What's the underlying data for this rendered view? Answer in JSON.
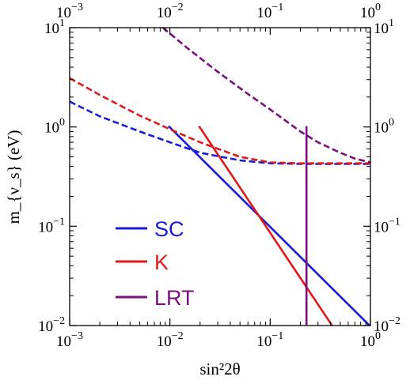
{
  "chart_data": {
    "type": "line",
    "xlabel": "sin²2θ",
    "ylabel": "m_{ν_s} (eV)",
    "x_scale": "log",
    "y_scale": "log",
    "xlim": [
      0.001,
      1
    ],
    "ylim": [
      0.01,
      10
    ],
    "grid": false,
    "legend_position": "bottom-left",
    "x_ticks": [
      {
        "value": 0.001,
        "base": "10",
        "exp": "−3"
      },
      {
        "value": 0.01,
        "base": "10",
        "exp": "−2"
      },
      {
        "value": 0.1,
        "base": "10",
        "exp": "−1"
      },
      {
        "value": 1,
        "base": "10",
        "exp": "0"
      }
    ],
    "y_ticks": [
      {
        "value": 0.01,
        "base": "10",
        "exp": "−2"
      },
      {
        "value": 0.1,
        "base": "10",
        "exp": "−1"
      },
      {
        "value": 1,
        "base": "10",
        "exp": "0"
      },
      {
        "value": 10,
        "base": "10",
        "exp": "1"
      }
    ],
    "series": [
      {
        "name": "SC",
        "color": "#1a1adb",
        "style": "solid",
        "x": [
          0.0097,
          1.0
        ],
        "y": [
          1.02,
          0.0098
        ]
      },
      {
        "name": "K",
        "color": "#e01a1a",
        "style": "solid",
        "x": [
          0.0195,
          0.42
        ],
        "y": [
          1.02,
          0.0098
        ]
      },
      {
        "name": "LRT",
        "color": "#7a107a",
        "style": "solid",
        "x": [
          0.23,
          0.23
        ],
        "y": [
          1.02,
          0.0098
        ]
      },
      {
        "name": "SC",
        "color": "#1a1adb",
        "style": "dashed",
        "x": [
          0.001,
          0.002,
          0.005,
          0.01,
          0.02,
          0.05,
          0.1,
          0.2,
          0.5,
          1.0
        ],
        "y": [
          1.8,
          1.28,
          0.9,
          0.7,
          0.55,
          0.46,
          0.43,
          0.425,
          0.425,
          0.425
        ]
      },
      {
        "name": "K",
        "color": "#e01a1a",
        "style": "dashed",
        "x": [
          0.001,
          0.002,
          0.005,
          0.01,
          0.02,
          0.05,
          0.1,
          0.2,
          0.5,
          1.0
        ],
        "y": [
          3.1,
          2.1,
          1.3,
          0.95,
          0.7,
          0.5,
          0.44,
          0.43,
          0.43,
          0.43
        ]
      },
      {
        "name": "LRT",
        "color": "#7a107a",
        "style": "dashed",
        "x": [
          0.0085,
          0.015,
          0.03,
          0.06,
          0.1,
          0.2,
          0.3,
          0.5,
          0.7,
          1.0
        ],
        "y": [
          10.0,
          6.2,
          3.6,
          2.15,
          1.5,
          0.9,
          0.7,
          0.55,
          0.48,
          0.44
        ]
      }
    ],
    "legend": [
      {
        "label": "SC",
        "color": "#1a1adb"
      },
      {
        "label": "K",
        "color": "#e01a1a"
      },
      {
        "label": "LRT",
        "color": "#7a107a"
      }
    ]
  }
}
